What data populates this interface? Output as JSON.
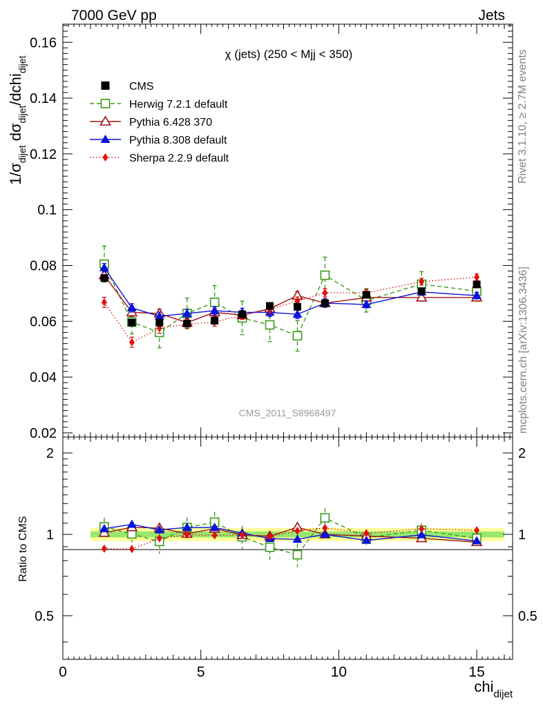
{
  "header": {
    "left": "7000 GeV pp",
    "right": "Jets"
  },
  "side": {
    "rivet": "Rivet 3.1.10, ≥ 2.7M events",
    "mcplots": "mcplots.cern.ch [arXiv:1306.3436]"
  },
  "chart_data": {
    "type": "line",
    "title": "χ (jets) (250 < Mjj <  350)",
    "watermark": "CMS_2011_S8968497",
    "xlabel_main": "chi",
    "xlabel_sub": "dijet",
    "ylabel": {
      "p1": "1/σ",
      "s1": "dijet",
      "p2": " dσ",
      "s2": "dijet",
      "p3": "/dchi",
      "s3": "dijet"
    },
    "ratio_ylabel": "Ratio to CMS",
    "xlim": [
      0,
      16.3
    ],
    "ylim": [
      0.0185,
      0.1665
    ],
    "ratio_ylim": [
      0.345,
      2.29
    ],
    "x_ticks": [
      0,
      5,
      10,
      15
    ],
    "x_tick_labels": [
      "0",
      "5",
      "10",
      "15"
    ],
    "y_ticks": [
      0.02,
      0.04,
      0.06,
      0.08,
      0.1,
      0.12,
      0.14,
      0.16
    ],
    "y_tick_labels": [
      "0.02",
      "0.04",
      "0.06",
      "0.08",
      "0.1",
      "0.12",
      "0.14",
      "0.16"
    ],
    "ratio_ticks": [
      0.5,
      1,
      2
    ],
    "ratio_tick_labels": [
      "0.5",
      "1",
      "2"
    ],
    "legend_position": "top-left",
    "bins": [
      [
        1,
        2
      ],
      [
        2,
        3
      ],
      [
        3,
        4
      ],
      [
        4,
        5
      ],
      [
        5,
        6
      ],
      [
        6,
        7
      ],
      [
        7,
        8
      ],
      [
        8,
        9
      ],
      [
        9,
        10
      ],
      [
        10,
        12
      ],
      [
        12,
        14
      ],
      [
        14,
        16
      ]
    ],
    "x": [
      1.5,
      2.5,
      3.5,
      4.5,
      5.5,
      6.5,
      7.5,
      8.5,
      9.5,
      11,
      13,
      15
    ],
    "cms_band": {
      "inner": 0.025,
      "outer": 0.055
    },
    "series": [
      {
        "name": "CMS",
        "color": "#000000",
        "marker": "square-filled",
        "dash": "none",
        "values": [
          0.0755,
          0.0595,
          0.0595,
          0.0592,
          0.0602,
          0.0625,
          0.0655,
          0.0652,
          0.0665,
          0.0695,
          0.0708,
          0.0732
        ],
        "errors": [
          0.0012,
          0.001,
          0.001,
          0.001,
          0.001,
          0.001,
          0.001,
          0.001,
          0.0012,
          0.001,
          0.001,
          0.0012
        ]
      },
      {
        "name": "Herwig 7.2.1 default",
        "color": "#3a9a1a",
        "marker": "square-open",
        "dash": "6,4",
        "values": [
          0.0805,
          0.0597,
          0.056,
          0.0628,
          0.0668,
          0.0612,
          0.0587,
          0.0548,
          0.0765,
          0.0675,
          0.0733,
          0.0708
        ],
        "errors": [
          0.0065,
          0.0042,
          0.0055,
          0.0055,
          0.006,
          0.006,
          0.006,
          0.0055,
          0.0065,
          0.0042,
          0.0045,
          0.0035
        ]
      },
      {
        "name": "Pythia 6.428 370",
        "color": "#a01010",
        "marker": "triangle-open",
        "dash": "none",
        "values": [
          0.0765,
          0.0632,
          0.0628,
          0.0595,
          0.0632,
          0.0622,
          0.0645,
          0.0692,
          0.0665,
          0.0685,
          0.0685,
          0.0685
        ],
        "errors": [
          0.0015,
          0.0015,
          0.0015,
          0.0015,
          0.0015,
          0.0015,
          0.0015,
          0.0015,
          0.0015,
          0.0012,
          0.0012,
          0.0012
        ]
      },
      {
        "name": "Pythia 8.308 default",
        "color": "#0a14d8",
        "marker": "triangle-filled",
        "dash": "none",
        "values": [
          0.0792,
          0.0648,
          0.0618,
          0.0628,
          0.0638,
          0.0632,
          0.0632,
          0.0625,
          0.0665,
          0.066,
          0.0705,
          0.0692
        ],
        "errors": [
          0.0015,
          0.0015,
          0.0015,
          0.0015,
          0.0015,
          0.0015,
          0.0015,
          0.0015,
          0.0015,
          0.0012,
          0.0012,
          0.0012
        ]
      },
      {
        "name": "Sherpa 2.2.9 default",
        "color": "#e01010",
        "marker": "diamond-filled",
        "dash": "1.5,3",
        "values": [
          0.0668,
          0.0525,
          0.0575,
          0.059,
          0.0597,
          0.0622,
          0.0643,
          0.0672,
          0.0702,
          0.0702,
          0.0742,
          0.0758
        ],
        "errors": [
          0.0018,
          0.0018,
          0.0018,
          0.0015,
          0.0015,
          0.0015,
          0.0015,
          0.0015,
          0.0015,
          0.0012,
          0.0012,
          0.0012
        ]
      }
    ]
  }
}
